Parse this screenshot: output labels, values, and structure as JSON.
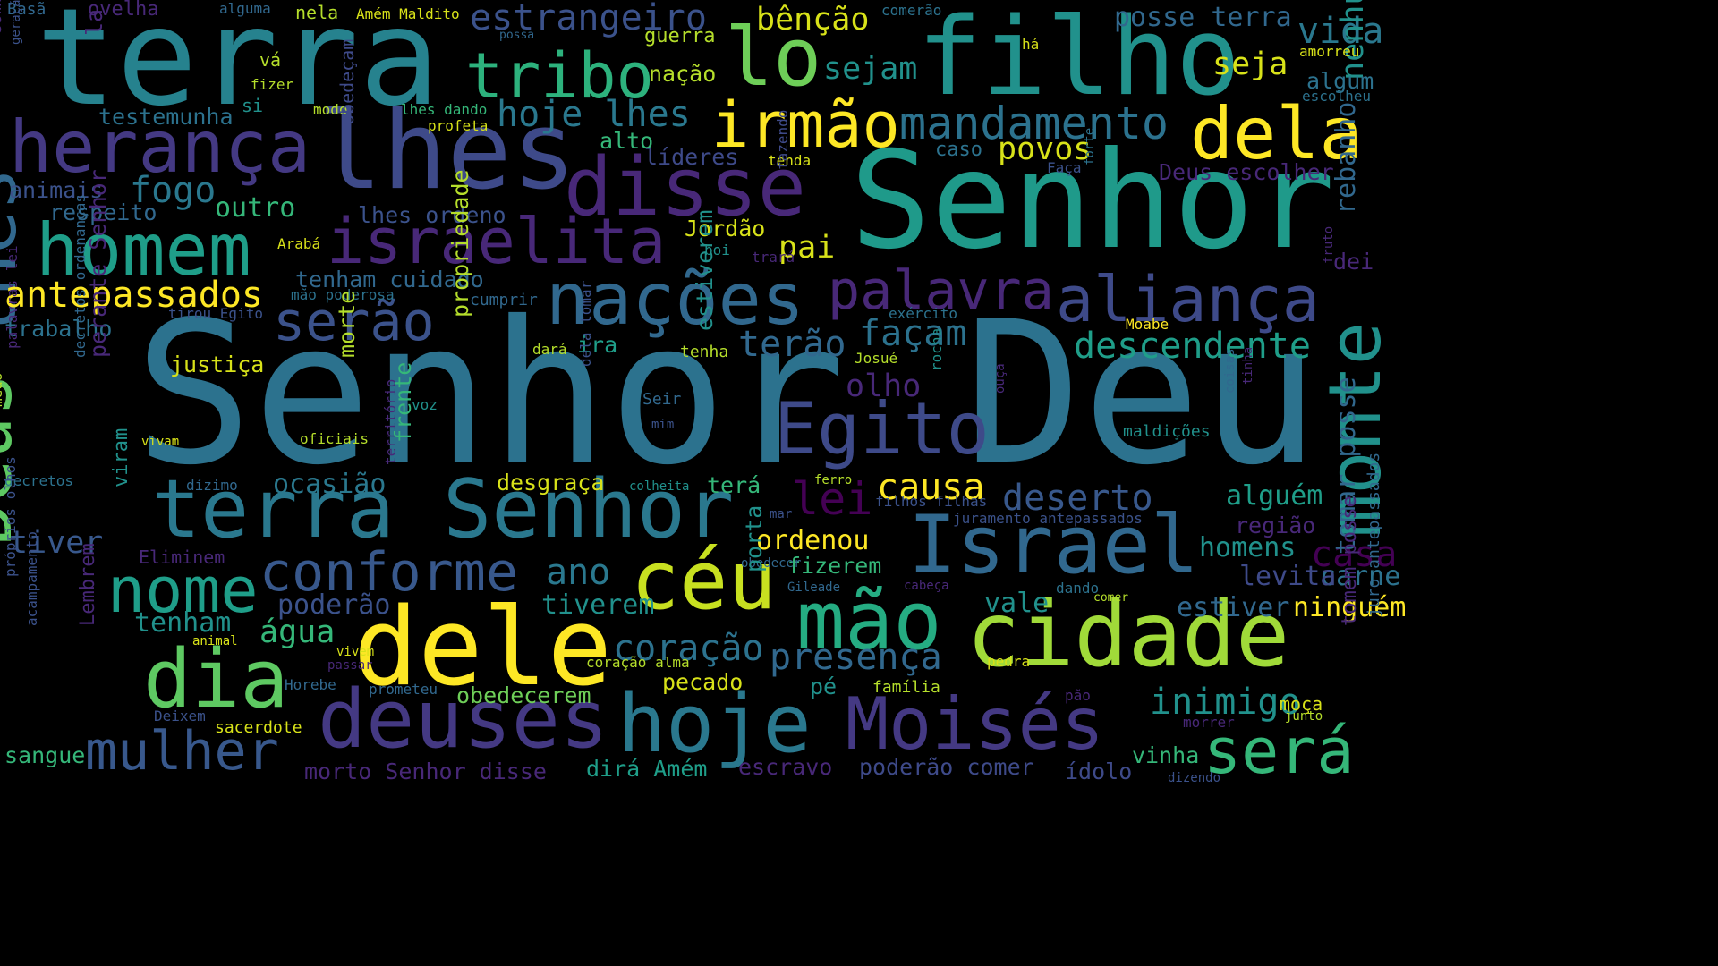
{
  "palette": {
    "background": "#000000",
    "colors": [
      "#440154",
      "#482878",
      "#3e4a89",
      "#31688e",
      "#26828e",
      "#1f9e89",
      "#35b779",
      "#6ece58",
      "#b5de2b",
      "#fde725"
    ]
  },
  "words": [
    {
      "text": "Senhor Deu"
    },
    {
      "text": "Senhor"
    },
    {
      "text": "terra"
    },
    {
      "text": "filho"
    },
    {
      "text": "lhes"
    },
    {
      "text": "herança"
    },
    {
      "text": "disse"
    },
    {
      "text": "Egito"
    },
    {
      "text": "cidade"
    },
    {
      "text": "dele"
    },
    {
      "text": "terra Senhor"
    },
    {
      "text": "Israel"
    },
    {
      "text": "deuses"
    },
    {
      "text": "hoje"
    },
    {
      "text": "Moisés"
    },
    {
      "text": "mão"
    },
    {
      "text": "céu"
    },
    {
      "text": "monte"
    },
    {
      "text": "nações"
    },
    {
      "text": "israelita"
    },
    {
      "text": "homem"
    },
    {
      "text": "dia"
    },
    {
      "text": "lhes"
    },
    {
      "text": "Deus"
    },
    {
      "text": "irmão"
    },
    {
      "text": "dela"
    },
    {
      "text": "tribo"
    },
    {
      "text": "lo"
    },
    {
      "text": "aliança"
    },
    {
      "text": "palavra"
    },
    {
      "text": "mulher"
    },
    {
      "text": "será"
    },
    {
      "text": "nome"
    },
    {
      "text": "conforme"
    },
    {
      "text": "serão"
    },
    {
      "text": "mandamento"
    },
    {
      "text": "antepassados"
    },
    {
      "text": "presença"
    },
    {
      "text": "coração"
    },
    {
      "text": "inimigo"
    },
    {
      "text": "descendente"
    },
    {
      "text": "deserto"
    },
    {
      "text": "hoje lhes"
    },
    {
      "text": "causa"
    },
    {
      "text": "lei"
    },
    {
      "text": "casa"
    },
    {
      "text": "vida"
    },
    {
      "text": "ordenou"
    },
    {
      "text": "fogo"
    },
    {
      "text": "seja"
    },
    {
      "text": "sejam"
    },
    {
      "text": "bênção"
    },
    {
      "text": "estrangeiro"
    },
    {
      "text": "posse terra"
    },
    {
      "text": "tomar posse"
    },
    {
      "text": "nenhum"
    },
    {
      "text": "rebanho"
    },
    {
      "text": "ano"
    },
    {
      "text": "água"
    },
    {
      "text": "tenham"
    },
    {
      "text": "obedecerem"
    },
    {
      "text": "tiverem"
    },
    {
      "text": "tiver"
    },
    {
      "text": "carne"
    },
    {
      "text": "ninguém"
    },
    {
      "text": "terão"
    },
    {
      "text": "façam"
    },
    {
      "text": "olho"
    },
    {
      "text": "povos"
    },
    {
      "text": "pai"
    },
    {
      "text": "outro"
    },
    {
      "text": "poderão"
    },
    {
      "text": "alguém"
    },
    {
      "text": "homens"
    },
    {
      "text": "levita"
    },
    {
      "text": "estiver"
    },
    {
      "text": "vale"
    },
    {
      "text": "ocasião"
    },
    {
      "text": "justiça"
    },
    {
      "text": "trabalho"
    },
    {
      "text": "morto Senhor disse"
    },
    {
      "text": "escravo"
    },
    {
      "text": "poderão comer"
    },
    {
      "text": "ídolo"
    },
    {
      "text": "dirá Amém"
    },
    {
      "text": "testemunha"
    },
    {
      "text": "animais"
    },
    {
      "text": "respeito"
    },
    {
      "text": "lhes ordeno"
    },
    {
      "text": "tenham cuidado"
    },
    {
      "text": "Jordão"
    },
    {
      "text": "alto"
    },
    {
      "text": "líderes"
    },
    {
      "text": "ira"
    },
    {
      "text": "desgraça"
    },
    {
      "text": "terá"
    },
    {
      "text": "fizerem"
    },
    {
      "text": "pecado"
    },
    {
      "text": "pé"
    },
    {
      "text": "vinha"
    },
    {
      "text": "moça"
    },
    {
      "text": "região"
    },
    {
      "text": "dei"
    },
    {
      "text": "algum"
    },
    {
      "text": "caso"
    },
    {
      "text": "nação"
    },
    {
      "text": "guerra"
    },
    {
      "text": "vá"
    },
    {
      "text": "fizer"
    },
    {
      "text": "si"
    },
    {
      "text": "modo"
    },
    {
      "text": "lhes dando"
    },
    {
      "text": "profeta"
    },
    {
      "text": "nela"
    },
    {
      "text": "Amém Maldito"
    },
    {
      "text": "ovelha"
    },
    {
      "text": "alguma"
    },
    {
      "text": "Basã"
    },
    {
      "text": "comerão"
    },
    {
      "text": "possa"
    },
    {
      "text": "há"
    },
    {
      "text": "amorreu"
    },
    {
      "text": "escolheu"
    },
    {
      "text": "Deus escolher"
    },
    {
      "text": "tenda"
    },
    {
      "text": "Faça"
    },
    {
      "text": "Arabá"
    },
    {
      "text": "boi"
    },
    {
      "text": "trará"
    },
    {
      "text": "mão poderosa"
    },
    {
      "text": "cumprir"
    },
    {
      "text": "tirou Egito"
    },
    {
      "text": "exército"
    },
    {
      "text": "Moabe"
    },
    {
      "text": "dará"
    },
    {
      "text": "tenha"
    },
    {
      "text": "Josué"
    },
    {
      "text": "Seir"
    },
    {
      "text": "mim"
    },
    {
      "text": "voz"
    },
    {
      "text": "oficiais"
    },
    {
      "text": "vivam"
    },
    {
      "text": "maldições"
    },
    {
      "text": "decretos"
    },
    {
      "text": "dízimo"
    },
    {
      "text": "colheita"
    },
    {
      "text": "ferro"
    },
    {
      "text": "filhos filhas"
    },
    {
      "text": "mar"
    },
    {
      "text": "juramento antepassados"
    },
    {
      "text": "Eliminem"
    },
    {
      "text": "obedecer"
    },
    {
      "text": "Gileade"
    },
    {
      "text": "cabeça"
    },
    {
      "text": "dando"
    },
    {
      "text": "comer"
    },
    {
      "text": "animal"
    },
    {
      "text": "vivem"
    },
    {
      "text": "passar"
    },
    {
      "text": "coração alma"
    },
    {
      "text": "pedra"
    },
    {
      "text": "Horebe"
    },
    {
      "text": "prometeu"
    },
    {
      "text": "família"
    },
    {
      "text": "pão"
    },
    {
      "text": "Deixem"
    },
    {
      "text": "sacerdote"
    },
    {
      "text": "morrer"
    },
    {
      "text": "junto"
    },
    {
      "text": "sangue"
    },
    {
      "text": "dizendo"
    },
    {
      "text": "viram"
    },
    {
      "text": "perante Senhor"
    },
    {
      "text": "propriedade"
    },
    {
      "text": "morte"
    },
    {
      "text": "estiverem"
    },
    {
      "text": "frente"
    },
    {
      "text": "território"
    },
    {
      "text": "porta"
    },
    {
      "text": "obedeçam"
    },
    {
      "text": "fazendo"
    },
    {
      "text": "dela tomar"
    },
    {
      "text": "rocha"
    },
    {
      "text": "ouça"
    },
    {
      "text": "coisas"
    },
    {
      "text": "tinha"
    },
    {
      "text": "forte"
    },
    {
      "text": "fruto"
    },
    {
      "text": "tomem posse"
    },
    {
      "text": "juro antepassados"
    },
    {
      "text": "Lembrem"
    },
    {
      "text": "acampamento"
    },
    {
      "text": "próprios olhos"
    },
    {
      "text": "feito"
    },
    {
      "text": "medo"
    },
    {
      "text": "palavras lei"
    },
    {
      "text": "decretos ordenanças"
    },
    {
      "text": "comam"
    },
    {
      "text": "geração"
    },
    {
      "text": "la"
    }
  ]
}
